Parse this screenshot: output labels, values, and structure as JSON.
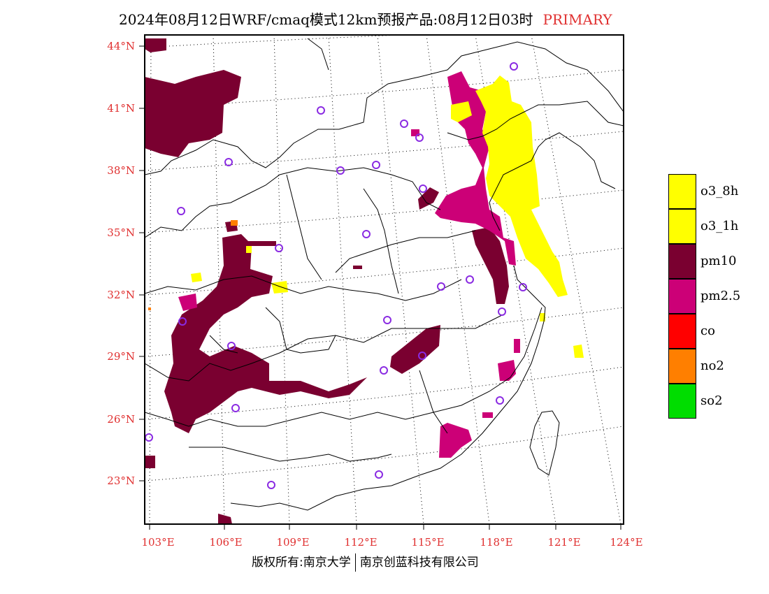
{
  "header": {
    "title": "2024年08月12日WRF/cmaq模式12km预报产品:08月12日03时",
    "tag": "PRIMARY"
  },
  "map": {
    "lat_labels": [
      "44°N",
      "41°N",
      "38°N",
      "35°N",
      "32°N",
      "29°N",
      "26°N",
      "23°N"
    ],
    "lon_labels": [
      "103°E",
      "106°E",
      "109°E",
      "112°E",
      "115°E",
      "118°E",
      "121°E",
      "124°E"
    ]
  },
  "legend": {
    "items": [
      {
        "label": "o3_8h",
        "color": "#ffff00"
      },
      {
        "label": "o3_1h",
        "color": "#ffff00"
      },
      {
        "label": "pm10",
        "color": "#7a0030"
      },
      {
        "label": "pm2.5",
        "color": "#cc0077"
      },
      {
        "label": "co",
        "color": "#ff0000"
      },
      {
        "label": "no2",
        "color": "#ff7f00"
      },
      {
        "label": "so2",
        "color": "#00dd00"
      }
    ]
  },
  "footer": {
    "left": "版权所有:南京大学",
    "right": "南京创蓝科技有限公司"
  },
  "colors": {
    "label": "#e03030",
    "station": "#8a2be2"
  }
}
